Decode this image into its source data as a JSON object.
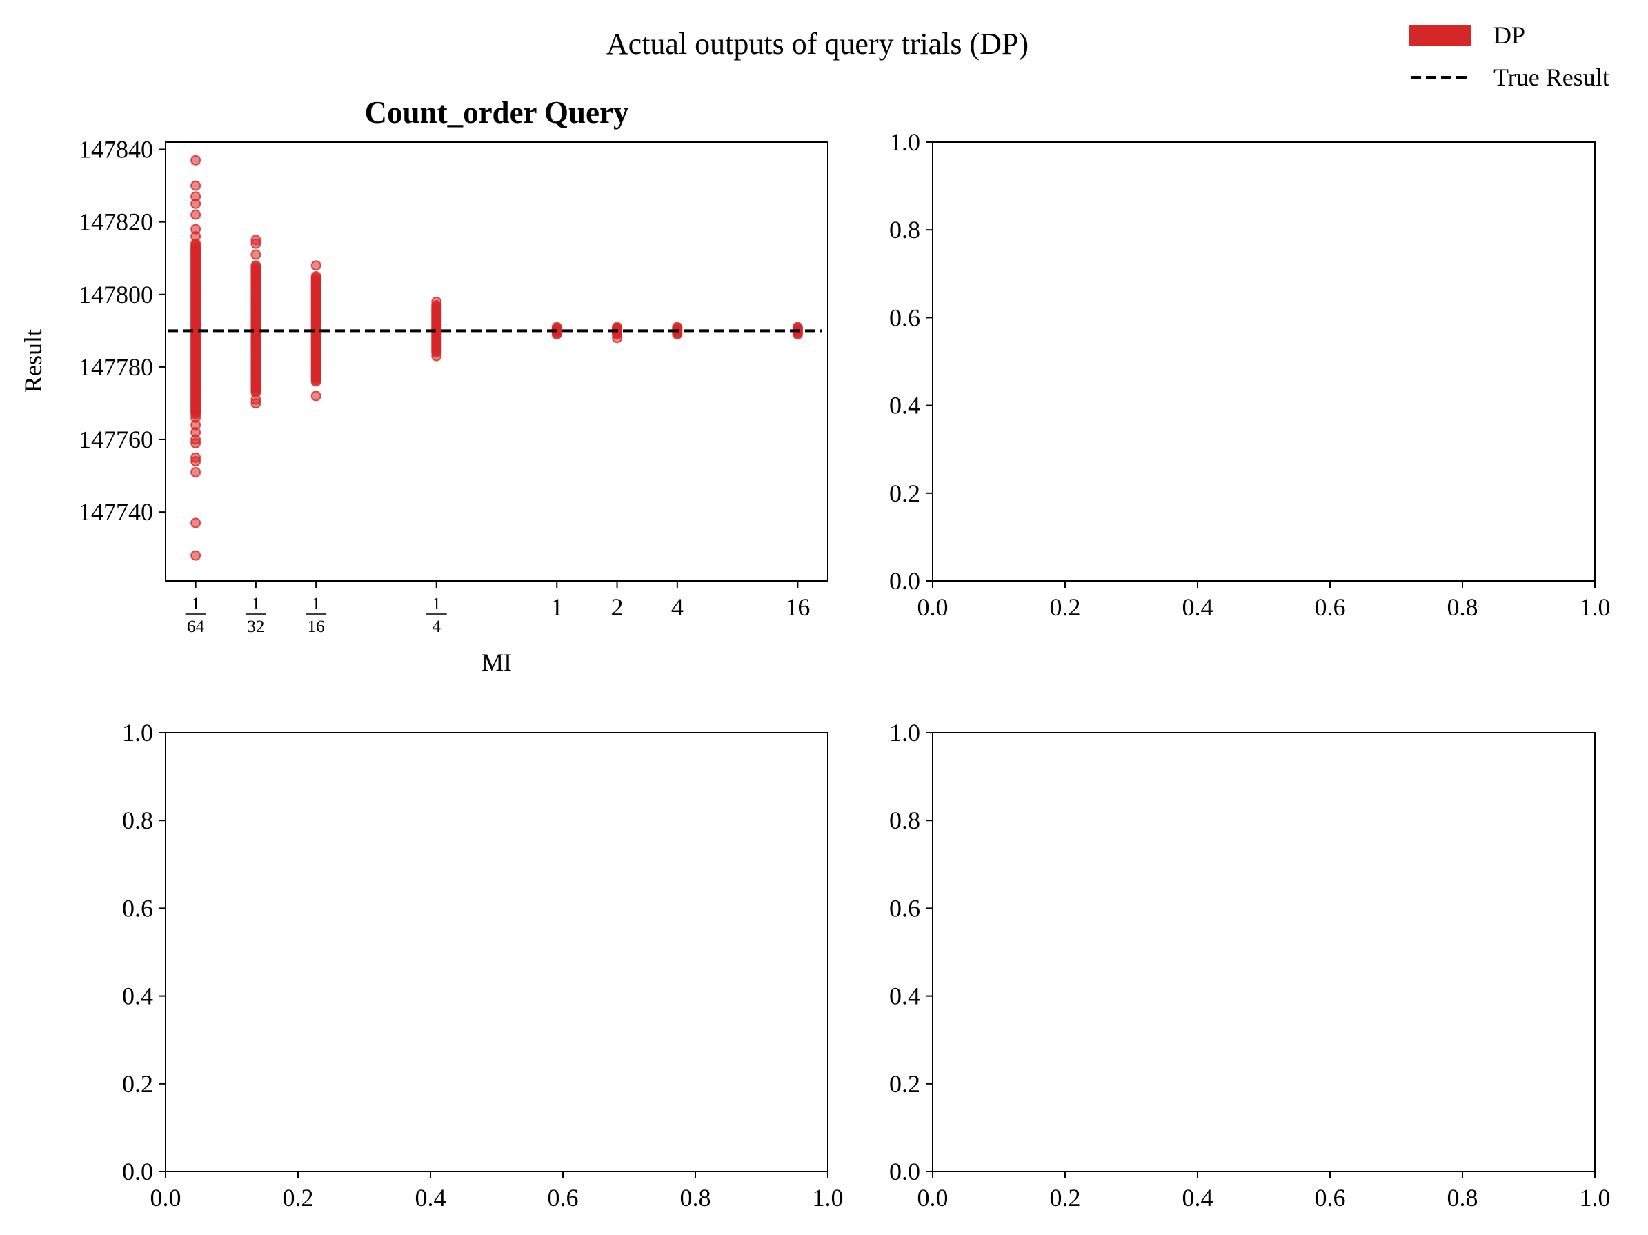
{
  "figure": {
    "title": "Actual outputs of query trials (DP)"
  },
  "legend": {
    "placement": "top-right",
    "items": [
      {
        "label": "DP",
        "kind": "patch",
        "color": "#d62728"
      },
      {
        "label": "True Result",
        "kind": "dashed-line",
        "color": "#000000"
      }
    ]
  },
  "chart_data": [
    {
      "type": "scatter",
      "panel": "top-left",
      "title": "Count_order Query",
      "xlabel": "MI",
      "ylabel": "Result",
      "xscale": "log2",
      "x_ticks": [
        {
          "value": 0.015625,
          "kind": "frac",
          "num": "1",
          "den": "64"
        },
        {
          "value": 0.03125,
          "kind": "frac",
          "num": "1",
          "den": "32"
        },
        {
          "value": 0.0625,
          "kind": "frac",
          "num": "1",
          "den": "16"
        },
        {
          "value": 0.25,
          "kind": "frac",
          "num": "1",
          "den": "4"
        },
        {
          "value": 1,
          "kind": "int",
          "label": "1"
        },
        {
          "value": 2,
          "kind": "int",
          "label": "2"
        },
        {
          "value": 4,
          "kind": "int",
          "label": "4"
        },
        {
          "value": 16,
          "kind": "int",
          "label": "16"
        }
      ],
      "y_ticks": [
        "147740",
        "147760",
        "147780",
        "147800",
        "147820",
        "147840"
      ],
      "ylim": [
        147721,
        147842
      ],
      "true_result": 147790,
      "series": [
        {
          "name": "DP",
          "color": "#d62728",
          "groups": [
            {
              "x": 0.015625,
              "dense_range": [
                147767,
                147814
              ],
              "outliers": [
                147837,
                147830,
                147827,
                147825,
                147822,
                147818,
                147816,
                147766,
                147764,
                147762,
                147760,
                147759,
                147755,
                147754,
                147751,
                147737,
                147728
              ]
            },
            {
              "x": 0.03125,
              "dense_range": [
                147773,
                147808
              ],
              "outliers": [
                147815,
                147814,
                147811,
                147771,
                147770
              ]
            },
            {
              "x": 0.0625,
              "dense_range": [
                147776,
                147805
              ],
              "outliers": [
                147808,
                147772
              ]
            },
            {
              "x": 0.25,
              "dense_range": [
                147784,
                147797
              ],
              "outliers": [
                147798,
                147783
              ]
            },
            {
              "x": 1,
              "dense_range": [
                147789,
                147791
              ],
              "outliers": []
            },
            {
              "x": 2,
              "dense_range": [
                147789,
                147791
              ],
              "outliers": [
                147788
              ]
            },
            {
              "x": 4,
              "dense_range": [
                147789,
                147791
              ],
              "outliers": []
            },
            {
              "x": 16,
              "dense_range": [
                147789,
                147791
              ],
              "outliers": []
            }
          ]
        }
      ]
    },
    {
      "type": "scatter",
      "panel": "top-right",
      "empty": true,
      "xlim": [
        0,
        1
      ],
      "ylim": [
        0,
        1
      ],
      "x_ticks": [
        "0.0",
        "0.2",
        "0.4",
        "0.6",
        "0.8",
        "1.0"
      ],
      "y_ticks": [
        "0.0",
        "0.2",
        "0.4",
        "0.6",
        "0.8",
        "1.0"
      ]
    },
    {
      "type": "scatter",
      "panel": "bottom-left",
      "empty": true,
      "xlim": [
        0,
        1
      ],
      "ylim": [
        0,
        1
      ],
      "x_ticks": [
        "0.0",
        "0.2",
        "0.4",
        "0.6",
        "0.8",
        "1.0"
      ],
      "y_ticks": [
        "0.0",
        "0.2",
        "0.4",
        "0.6",
        "0.8",
        "1.0"
      ]
    },
    {
      "type": "scatter",
      "panel": "bottom-right",
      "empty": true,
      "xlim": [
        0,
        1
      ],
      "ylim": [
        0,
        1
      ],
      "x_ticks": [
        "0.0",
        "0.2",
        "0.4",
        "0.6",
        "0.8",
        "1.0"
      ],
      "y_ticks": [
        "0.0",
        "0.2",
        "0.4",
        "0.6",
        "0.8",
        "1.0"
      ]
    }
  ]
}
